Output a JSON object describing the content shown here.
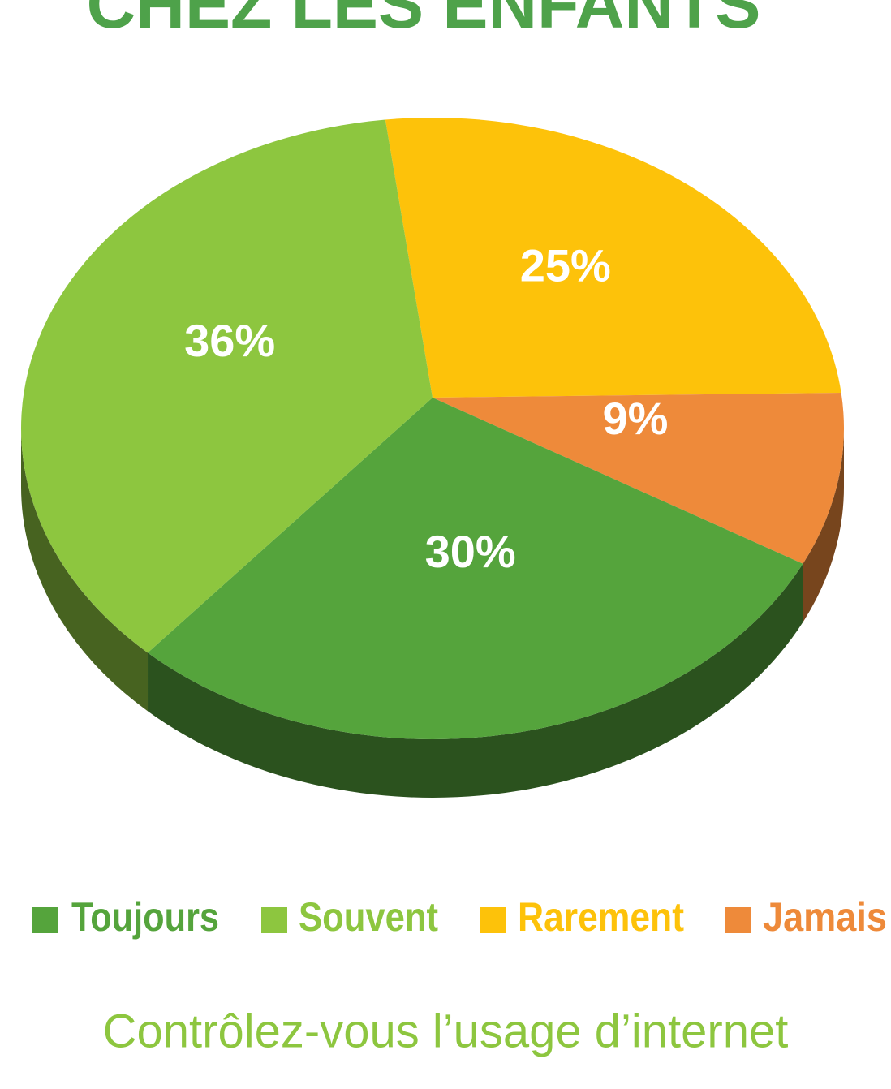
{
  "chart_data": {
    "type": "pie",
    "title": "CHEZ LES ENFANTS",
    "categories": [
      "Toujours",
      "Souvent",
      "Rarement",
      "Jamais"
    ],
    "values": [
      30,
      36,
      25,
      9
    ],
    "value_labels": [
      "30%",
      "36%",
      "25%",
      "9%"
    ],
    "colors": [
      "#55a43c",
      "#8dc63f",
      "#fdc20a",
      "#ee8a3a"
    ],
    "subtitle": "Contrôlez-vous l’usage d’internet"
  }
}
